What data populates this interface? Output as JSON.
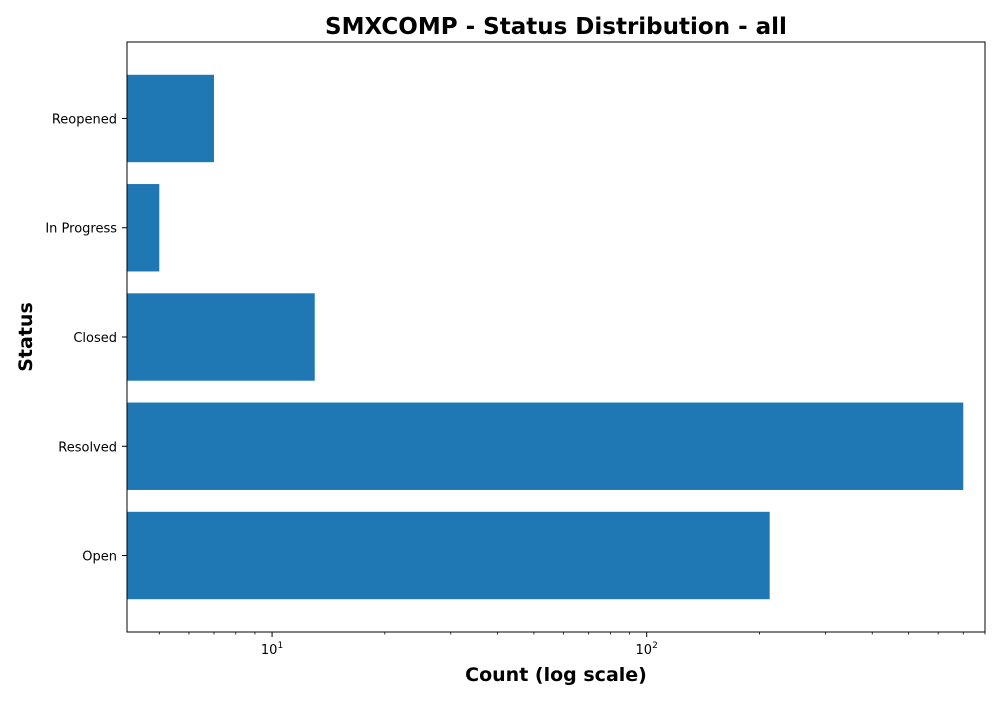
{
  "chart_data": {
    "type": "bar",
    "orientation": "horizontal",
    "title": "SMXCOMP - Status Distribution - all",
    "xlabel": "Count (log scale)",
    "ylabel": "Status",
    "x_scale": "log",
    "xlim": [
      4.1,
      800
    ],
    "x_major_ticks": [
      {
        "value": 10,
        "base": "10",
        "exp": "1"
      },
      {
        "value": 100,
        "base": "10",
        "exp": "2"
      }
    ],
    "categories": [
      "Open",
      "Resolved",
      "Closed",
      "In Progress",
      "Reopened"
    ],
    "values": [
      213,
      700,
      13,
      5,
      7
    ],
    "bar_color": "#1f77b4",
    "grid": false,
    "legend": false
  }
}
